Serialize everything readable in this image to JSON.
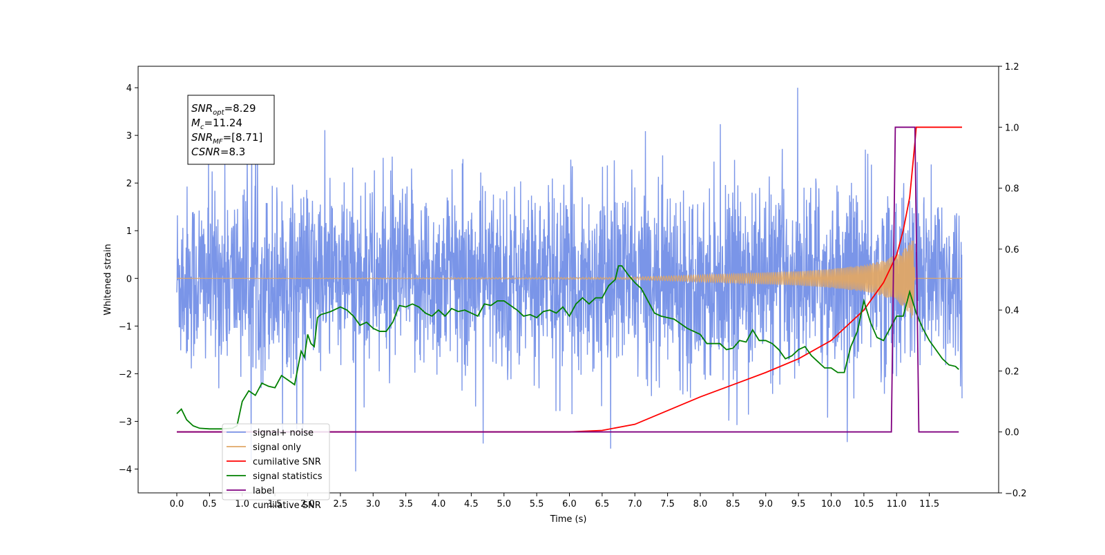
{
  "chart_data": {
    "type": "line",
    "xlabel": "Time (s)",
    "ylabel": "Whitened strain",
    "xlim": [
      -0.6,
      12.6
    ],
    "ylim": [
      -4.5,
      4.45
    ],
    "y2lim": [
      -0.2,
      1.2
    ],
    "x_ticks": [
      "0.0",
      "0.5",
      "1.0",
      "1.5",
      "2.0",
      "2.5",
      "3.0",
      "3.5",
      "4.0",
      "4.5",
      "5.0",
      "5.5",
      "6.0",
      "6.5",
      "7.0",
      "7.5",
      "8.0",
      "8.5",
      "9.0",
      "9.5",
      "10.0",
      "10.5",
      "11.0",
      "11.5"
    ],
    "y_ticks": [
      "4",
      "3",
      "2",
      "1",
      "0",
      "−1",
      "−2",
      "−3",
      "−4"
    ],
    "y2_ticks": [
      "1.2",
      "1.0",
      "0.8",
      "0.6",
      "0.4",
      "0.2",
      "0.0",
      "−0.2"
    ],
    "grid": false,
    "legend_position": "lower-left",
    "annotation": {
      "lines": [
        {
          "sym": "SNR",
          "sub": "opt",
          "val": "=8.29"
        },
        {
          "sym": "M",
          "sub": "c",
          "val": "=11.24"
        },
        {
          "sym": "SNR",
          "sub": "MF",
          "val": "=[8.71]"
        },
        {
          "sym": "CSNR",
          "sub": "",
          "val": "=8.3"
        }
      ]
    },
    "series": [
      {
        "name": "signal+ noise",
        "color": "#7a95e8",
        "axis": "left",
        "style": "dense noise, amplitude ~±2.5 with spikes to ~±4",
        "x_range": [
          0.0,
          12.0
        ]
      },
      {
        "name": "signal only",
        "color": "#e0a766",
        "axis": "left",
        "style": "chirp, amplitude rising from ~0 at t=6.8 to ~±0.9 at t=11.28, then flat 0",
        "envelope": {
          "x": [
            0.0,
            6.8,
            7.5,
            8.5,
            9.5,
            10.0,
            10.5,
            10.8,
            11.0,
            11.1,
            11.2,
            11.25,
            11.28,
            12.0
          ],
          "y": [
            0.0,
            0.02,
            0.05,
            0.1,
            0.15,
            0.2,
            0.28,
            0.38,
            0.5,
            0.6,
            0.75,
            0.9,
            0.0,
            0.0
          ]
        }
      },
      {
        "name": "cumilative SNR",
        "color": "#ff0000",
        "axis": "right",
        "x": [
          0.0,
          6.0,
          6.5,
          7.0,
          7.5,
          8.0,
          8.5,
          9.0,
          9.5,
          10.0,
          10.5,
          10.8,
          11.0,
          11.1,
          11.2,
          11.28,
          11.3,
          12.0
        ],
        "y": [
          0.0,
          0.0,
          0.005,
          0.025,
          0.07,
          0.115,
          0.155,
          0.195,
          0.24,
          0.3,
          0.4,
          0.49,
          0.58,
          0.66,
          0.77,
          0.95,
          1.0,
          1.0
        ]
      },
      {
        "name": "signal statistics",
        "color": "#008000",
        "axis": "right",
        "x": [
          0.0,
          0.07,
          0.15,
          0.25,
          0.35,
          0.5,
          0.7,
          0.85,
          0.92,
          1.0,
          1.1,
          1.2,
          1.3,
          1.4,
          1.5,
          1.6,
          1.7,
          1.8,
          1.9,
          1.95,
          2.0,
          2.05,
          2.1,
          2.15,
          2.2,
          2.28,
          2.35,
          2.5,
          2.6,
          2.7,
          2.8,
          2.9,
          3.0,
          3.1,
          3.2,
          3.3,
          3.4,
          3.5,
          3.6,
          3.7,
          3.8,
          3.9,
          4.0,
          4.1,
          4.2,
          4.3,
          4.4,
          4.5,
          4.6,
          4.7,
          4.8,
          4.9,
          5.0,
          5.1,
          5.2,
          5.3,
          5.4,
          5.5,
          5.6,
          5.7,
          5.8,
          5.9,
          6.0,
          6.1,
          6.2,
          6.3,
          6.4,
          6.5,
          6.6,
          6.7,
          6.75,
          6.8,
          6.9,
          7.0,
          7.1,
          7.2,
          7.3,
          7.4,
          7.5,
          7.6,
          7.7,
          7.8,
          7.9,
          8.0,
          8.1,
          8.2,
          8.3,
          8.4,
          8.5,
          8.6,
          8.7,
          8.8,
          8.9,
          9.0,
          9.1,
          9.2,
          9.3,
          9.4,
          9.5,
          9.6,
          9.7,
          9.8,
          9.9,
          10.0,
          10.1,
          10.2,
          10.3,
          10.4,
          10.5,
          10.6,
          10.7,
          10.8,
          10.9,
          11.0,
          11.05,
          11.1,
          11.2,
          11.3,
          11.4,
          11.5,
          11.6,
          11.7,
          11.8,
          11.9,
          11.95
        ],
        "y": [
          0.06,
          0.075,
          0.04,
          0.02,
          0.012,
          0.01,
          0.01,
          0.012,
          0.02,
          0.1,
          0.135,
          0.12,
          0.16,
          0.15,
          0.145,
          0.185,
          0.17,
          0.155,
          0.265,
          0.245,
          0.32,
          0.29,
          0.28,
          0.375,
          0.385,
          0.39,
          0.395,
          0.41,
          0.4,
          0.38,
          0.35,
          0.36,
          0.34,
          0.33,
          0.33,
          0.36,
          0.415,
          0.41,
          0.42,
          0.41,
          0.39,
          0.38,
          0.4,
          0.38,
          0.405,
          0.395,
          0.4,
          0.39,
          0.38,
          0.42,
          0.415,
          0.43,
          0.43,
          0.415,
          0.4,
          0.38,
          0.385,
          0.375,
          0.395,
          0.4,
          0.39,
          0.41,
          0.38,
          0.42,
          0.44,
          0.42,
          0.44,
          0.44,
          0.48,
          0.5,
          0.545,
          0.545,
          0.515,
          0.49,
          0.47,
          0.43,
          0.39,
          0.38,
          0.375,
          0.37,
          0.355,
          0.34,
          0.33,
          0.32,
          0.29,
          0.29,
          0.29,
          0.27,
          0.275,
          0.3,
          0.295,
          0.335,
          0.3,
          0.3,
          0.29,
          0.27,
          0.24,
          0.25,
          0.27,
          0.28,
          0.25,
          0.23,
          0.21,
          0.21,
          0.195,
          0.195,
          0.28,
          0.33,
          0.43,
          0.36,
          0.31,
          0.3,
          0.34,
          0.38,
          0.38,
          0.38,
          0.46,
          0.39,
          0.34,
          0.3,
          0.27,
          0.24,
          0.22,
          0.215,
          0.205
        ]
      },
      {
        "name": "label",
        "color": "#800080",
        "axis": "right",
        "x": [
          0.0,
          10.92,
          10.98,
          11.28,
          11.34,
          11.95
        ],
        "y": [
          0.0,
          0.0,
          1.0,
          1.0,
          0.0,
          0.0
        ]
      },
      {
        "name": "cumilative SNR",
        "color": "#cccccc",
        "axis": "right",
        "style": "hidden behind legend",
        "x": [
          0.0,
          12.0
        ],
        "y": [
          0.0,
          0.0
        ]
      }
    ]
  }
}
